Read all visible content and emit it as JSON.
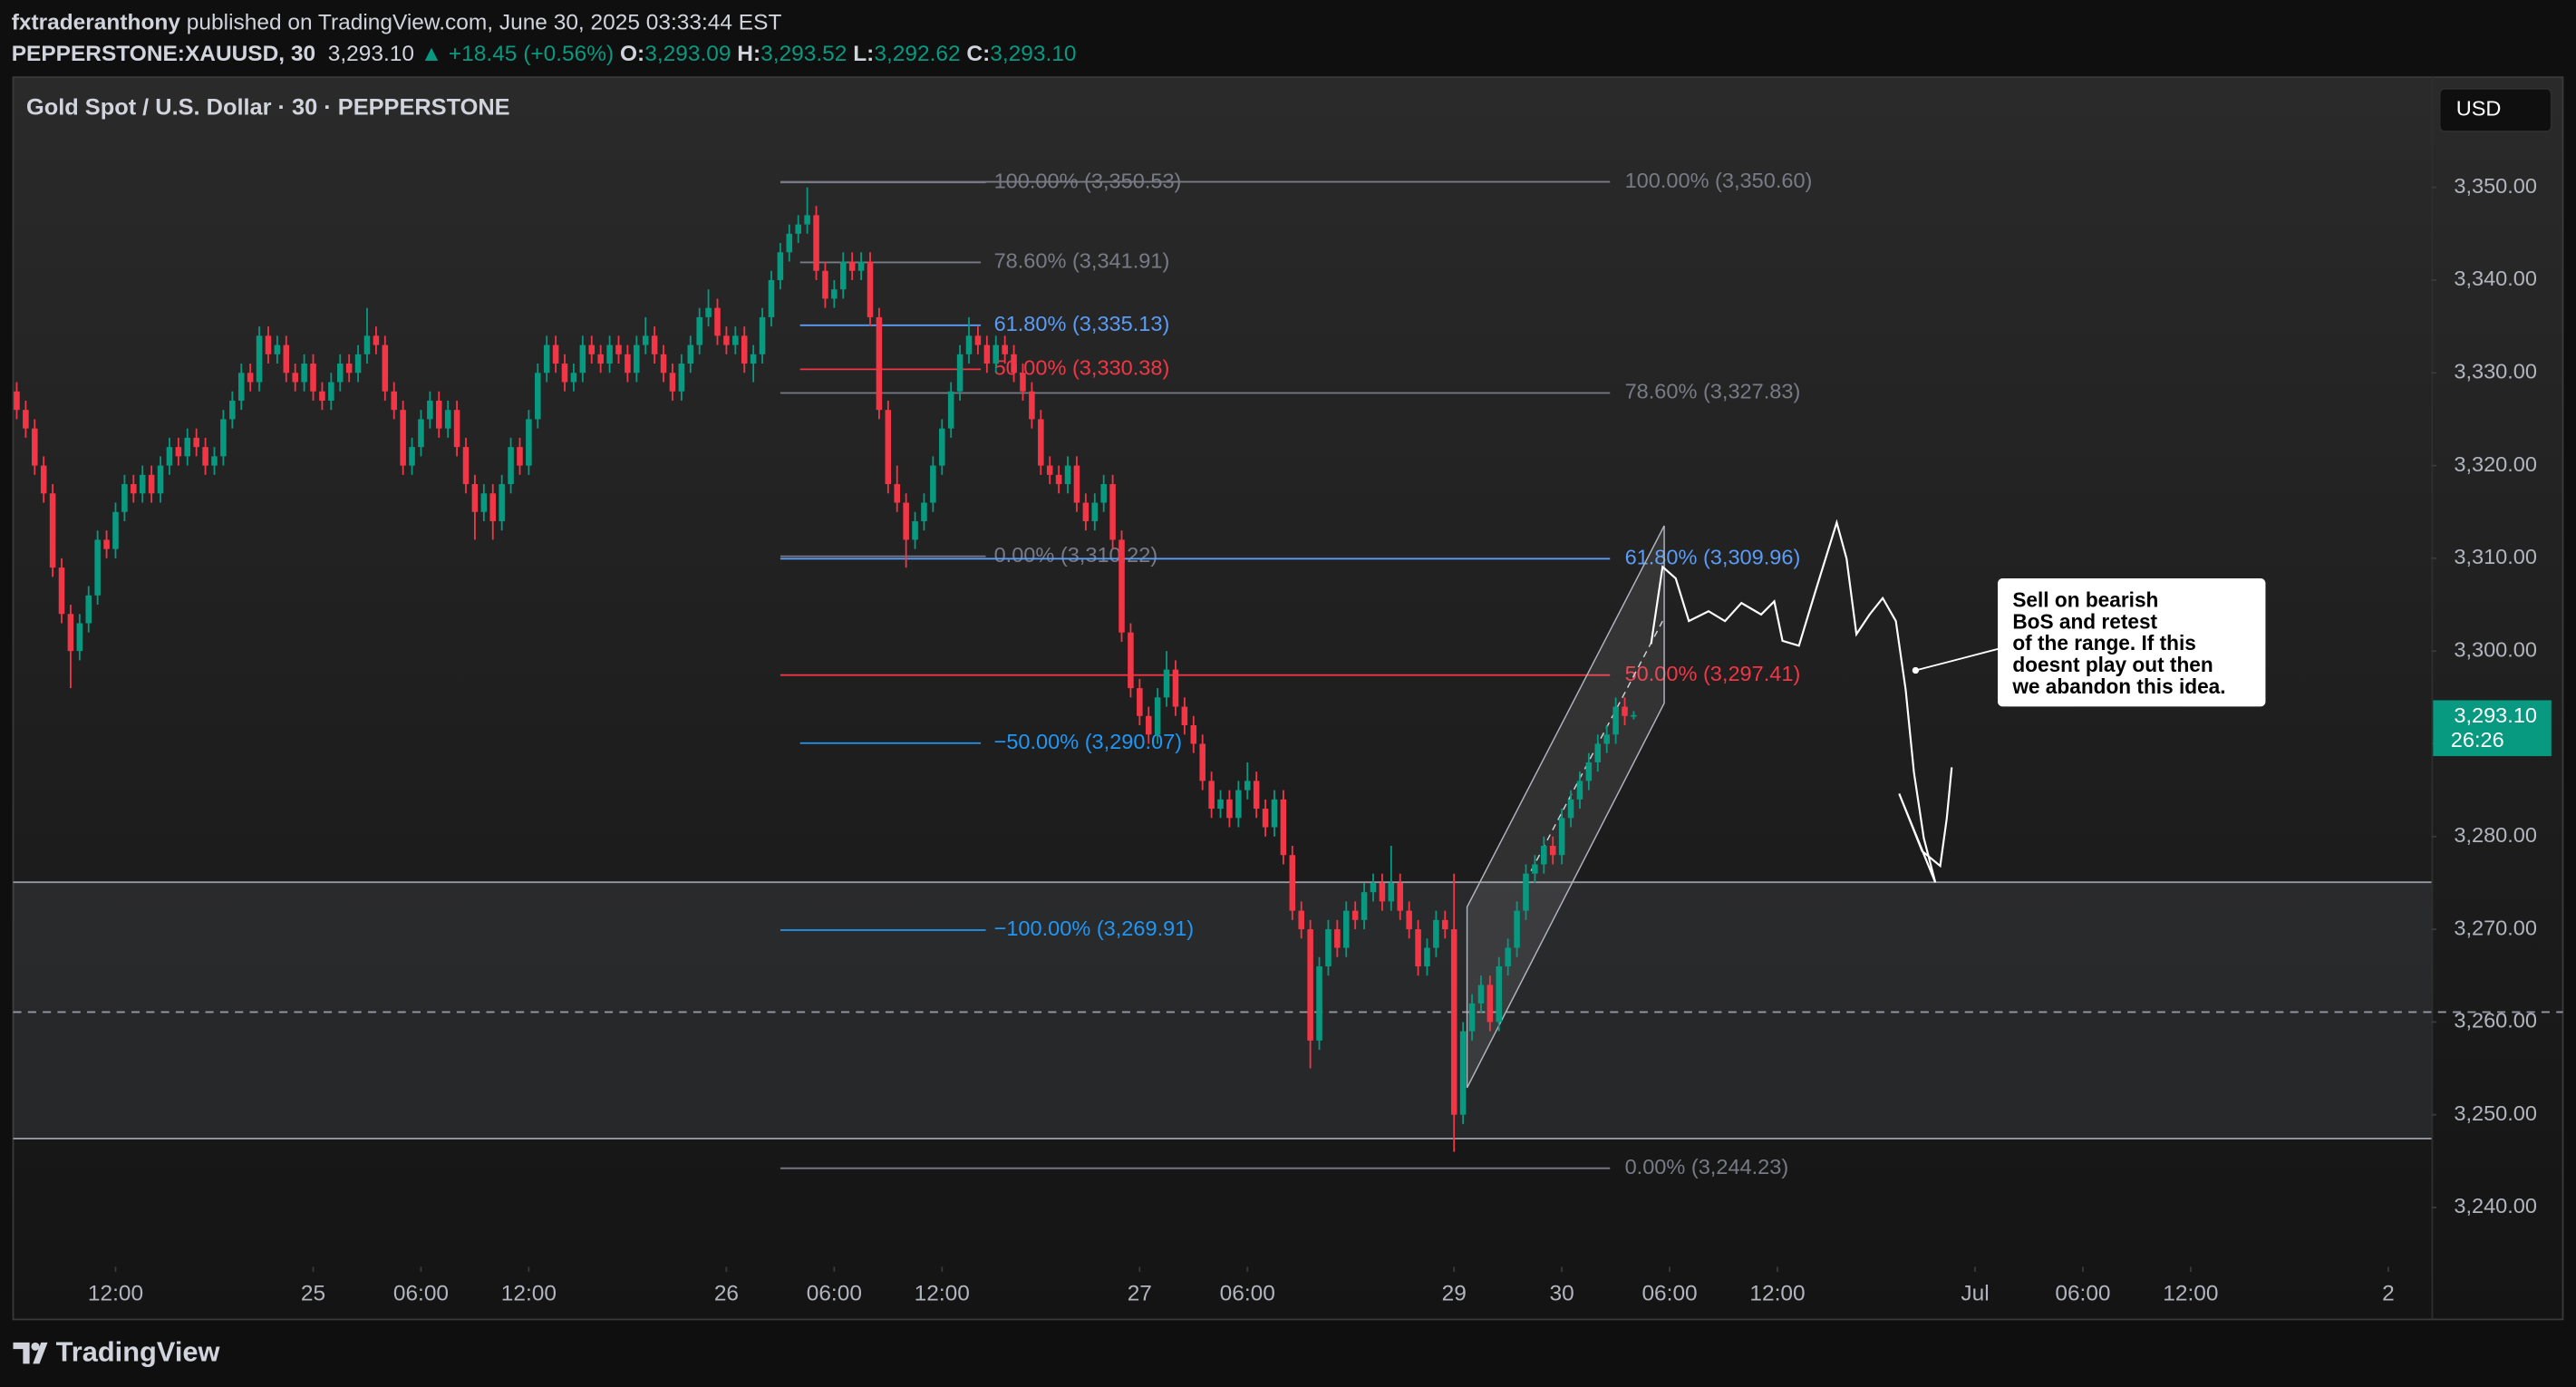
{
  "header": {
    "user": "fxtraderanthony",
    "published": "published on TradingView.com, June 30, 2025 03:33:44 EST",
    "symbol": "PEPPERSTONE:XAUUSD, 30",
    "last": "3,293.10",
    "arrow": "▲",
    "change": "+18.45 (+0.56%)",
    "ohlc": [
      {
        "key": "O:",
        "value": "3,293.09"
      },
      {
        "key": "H:",
        "value": "3,293.52"
      },
      {
        "key": "L:",
        "value": "3,292.62"
      },
      {
        "key": "C:",
        "value": "3,293.10"
      }
    ]
  },
  "chart_data": {
    "type": "candlestick",
    "title": "Gold Spot / U.S. Dollar · 30 · PEPPERSTONE",
    "currency": "USD",
    "up_color": "#089981",
    "down_color": "#f23645",
    "xlim": [
      -0.4,
      268.8
    ],
    "xticks": [
      {
        "value": 11,
        "label": "12:00"
      },
      {
        "value": 33,
        "label": "25"
      },
      {
        "value": 45,
        "label": "06:00"
      },
      {
        "value": 57,
        "label": "12:00"
      },
      {
        "value": 79,
        "label": "26"
      },
      {
        "value": 91,
        "label": "06:00"
      },
      {
        "value": 103,
        "label": "12:00"
      },
      {
        "value": 125,
        "label": "27"
      },
      {
        "value": 137,
        "label": "06:00"
      },
      {
        "value": 160,
        "label": "29"
      },
      {
        "value": 172,
        "label": "30"
      },
      {
        "value": 184,
        "label": "06:00"
      },
      {
        "value": 196,
        "label": "12:00"
      },
      {
        "value": 218,
        "label": "Jul"
      },
      {
        "value": 230,
        "label": "06:00"
      },
      {
        "value": 242,
        "label": "12:00"
      },
      {
        "value": 264,
        "label": "2"
      }
    ],
    "ylim": [
      3233.6,
      3361.7
    ],
    "yticks": [
      {
        "value": 3240,
        "label": "3,240.00"
      },
      {
        "value": 3250,
        "label": "3,250.00"
      },
      {
        "value": 3260,
        "label": "3,260.00"
      },
      {
        "value": 3270,
        "label": "3,270.00"
      },
      {
        "value": 3280,
        "label": "3,280.00"
      },
      {
        "value": 3290,
        "label": "3,290.00"
      },
      {
        "value": 3300,
        "label": "3,300.00"
      },
      {
        "value": 3310,
        "label": "3,310.00"
      },
      {
        "value": 3320,
        "label": "3,320.00"
      },
      {
        "value": 3330,
        "label": "3,330.00"
      },
      {
        "value": 3340,
        "label": "3,340.00"
      },
      {
        "value": 3350,
        "label": "3,350.00"
      }
    ],
    "last_price": {
      "value": 3293.1,
      "label": "3,293.10",
      "countdown": "26:26"
    },
    "zone": {
      "top": 3275.07,
      "bottom": 3247.43,
      "mid": 3261.07
    },
    "fib_retracements": [
      [
        {
          "label": "100.00% (3,350.53)",
          "value": 3350.53,
          "color": "#787b86"
        },
        {
          "label": "78.60% (3,341.91)",
          "value": 3341.91,
          "color": "#787b86"
        },
        {
          "label": "61.80% (3,335.13)",
          "value": 3335.13,
          "color": "#5b9cf6"
        },
        {
          "label": "50.00% (3,330.38)",
          "value": 3330.38,
          "color": "#f23645"
        },
        {
          "label": "0.00% (3,310.22)",
          "value": 3310.22,
          "color": "#787b86"
        },
        {
          "label": "−50.00% (3,290.07)",
          "value": 3290.07,
          "color": "#2196f3"
        },
        {
          "label": "−100.00% (3,269.91)",
          "value": 3269.91,
          "color": "#2196f3"
        }
      ],
      [
        {
          "label": "100.00% (3,350.60)",
          "value": 3350.6,
          "color": "#787b86"
        },
        {
          "label": "78.60% (3,327.83)",
          "value": 3327.83,
          "color": "#787b86"
        },
        {
          "label": "61.80% (3,309.96)",
          "value": 3309.96,
          "color": "#5b9cf6"
        },
        {
          "label": "50.00% (3,297.41)",
          "value": 3297.41,
          "color": "#f23645"
        },
        {
          "label": "0.00% (3,244.23)",
          "value": 3244.23,
          "color": "#787b86"
        }
      ]
    ],
    "note": [
      "Sell on bearish",
      "BoS and retest",
      "of the range. If this",
      "doesnt play out then",
      "we abandon this idea."
    ],
    "candles": [
      [
        3328,
        3329,
        3325,
        3326
      ],
      [
        3326,
        3327,
        3323,
        3324
      ],
      [
        3324,
        3325,
        3319,
        3320
      ],
      [
        3320,
        3321,
        3316,
        3317
      ],
      [
        3317,
        3318,
        3308,
        3309
      ],
      [
        3309,
        3310,
        3303,
        3304
      ],
      [
        3304,
        3305,
        3296,
        3300
      ],
      [
        3300,
        3304,
        3299,
        3303
      ],
      [
        3303,
        3307,
        3302,
        3306
      ],
      [
        3306,
        3313,
        3305,
        3312
      ],
      [
        3312,
        3313,
        3310,
        3311
      ],
      [
        3311,
        3316,
        3310,
        3315
      ],
      [
        3315,
        3319,
        3314,
        3318
      ],
      [
        3318,
        3319,
        3316,
        3317
      ],
      [
        3317,
        3320,
        3316,
        3319
      ],
      [
        3319,
        3320,
        3316,
        3317
      ],
      [
        3317,
        3321,
        3316,
        3320
      ],
      [
        3320,
        3323,
        3319,
        3322
      ],
      [
        3322,
        3323,
        3320,
        3321
      ],
      [
        3321,
        3324,
        3320,
        3323
      ],
      [
        3323,
        3324,
        3321,
        3322
      ],
      [
        3322,
        3323,
        3319,
        3320
      ],
      [
        3320,
        3322,
        3319,
        3321
      ],
      [
        3321,
        3326,
        3320,
        3325
      ],
      [
        3325,
        3328,
        3324,
        3327
      ],
      [
        3327,
        3331,
        3326,
        3330
      ],
      [
        3330,
        3331,
        3328,
        3329
      ],
      [
        3329,
        3335,
        3328,
        3334
      ],
      [
        3334,
        3335,
        3331,
        3332
      ],
      [
        3332,
        3334,
        3331,
        3333
      ],
      [
        3333,
        3334,
        3329,
        3330
      ],
      [
        3330,
        3331,
        3328,
        3329
      ],
      [
        3329,
        3332,
        3328,
        3331
      ],
      [
        3331,
        3332,
        3327,
        3328
      ],
      [
        3328,
        3329,
        3326,
        3327
      ],
      [
        3327,
        3330,
        3326,
        3329
      ],
      [
        3329,
        3332,
        3328,
        3331
      ],
      [
        3331,
        3332,
        3329,
        3330
      ],
      [
        3330,
        3333,
        3329,
        3332
      ],
      [
        3332,
        3337,
        3331,
        3334
      ],
      [
        3334,
        3335,
        3332,
        3333
      ],
      [
        3333,
        3334,
        3327,
        3328
      ],
      [
        3328,
        3329,
        3325,
        3326
      ],
      [
        3326,
        3327,
        3319,
        3320
      ],
      [
        3320,
        3323,
        3319,
        3322
      ],
      [
        3322,
        3326,
        3321,
        3325
      ],
      [
        3325,
        3328,
        3324,
        3327
      ],
      [
        3327,
        3328,
        3323,
        3324
      ],
      [
        3324,
        3327,
        3323,
        3326
      ],
      [
        3326,
        3327,
        3321,
        3322
      ],
      [
        3322,
        3323,
        3317,
        3318
      ],
      [
        3318,
        3319,
        3312,
        3315
      ],
      [
        3315,
        3318,
        3314,
        3317
      ],
      [
        3317,
        3318,
        3312,
        3314
      ],
      [
        3314,
        3319,
        3313,
        3318
      ],
      [
        3318,
        3323,
        3317,
        3322
      ],
      [
        3322,
        3323,
        3319,
        3320
      ],
      [
        3320,
        3326,
        3319,
        3325
      ],
      [
        3325,
        3331,
        3324,
        3330
      ],
      [
        3330,
        3334,
        3329,
        3333
      ],
      [
        3333,
        3334,
        3330,
        3331
      ],
      [
        3331,
        3332,
        3328,
        3329
      ],
      [
        3329,
        3331,
        3328,
        3330
      ],
      [
        3330,
        3334,
        3329,
        3333
      ],
      [
        3333,
        3334,
        3331,
        3332
      ],
      [
        3332,
        3333,
        3330,
        3331
      ],
      [
        3331,
        3334,
        3330,
        3333
      ],
      [
        3333,
        3334,
        3331,
        3332
      ],
      [
        3332,
        3333,
        3329,
        3330
      ],
      [
        3330,
        3334,
        3329,
        3333
      ],
      [
        3333,
        3336,
        3332,
        3334
      ],
      [
        3334,
        3335,
        3331,
        3332
      ],
      [
        3332,
        3333,
        3329,
        3330
      ],
      [
        3330,
        3331,
        3327,
        3328
      ],
      [
        3328,
        3332,
        3327,
        3331
      ],
      [
        3331,
        3334,
        3330,
        3333
      ],
      [
        3333,
        3337,
        3332,
        3336
      ],
      [
        3336,
        3339,
        3335,
        3337
      ],
      [
        3337,
        3338,
        3333,
        3334
      ],
      [
        3334,
        3335,
        3332,
        3333
      ],
      [
        3333,
        3335,
        3332,
        3334
      ],
      [
        3334,
        3335,
        3330,
        3331
      ],
      [
        3331,
        3333,
        3329,
        3332
      ],
      [
        3332,
        3337,
        3331,
        3336
      ],
      [
        3336,
        3341,
        3335,
        3340
      ],
      [
        3340,
        3344,
        3339,
        3343
      ],
      [
        3343,
        3346,
        3342,
        3345
      ],
      [
        3345,
        3347,
        3344,
        3346
      ],
      [
        3346,
        3350,
        3345,
        3347
      ],
      [
        3347,
        3348,
        3340,
        3341
      ],
      [
        3341,
        3342,
        3337,
        3338
      ],
      [
        3338,
        3340,
        3337,
        3339
      ],
      [
        3339,
        3343,
        3338,
        3342
      ],
      [
        3342,
        3343,
        3340,
        3341
      ],
      [
        3341,
        3343,
        3340,
        3342
      ],
      [
        3342,
        3343,
        3335,
        3336
      ],
      [
        3336,
        3337,
        3325,
        3326
      ],
      [
        3326,
        3327,
        3317,
        3318
      ],
      [
        3318,
        3320,
        3315,
        3316
      ],
      [
        3316,
        3317,
        3309,
        3312
      ],
      [
        3312,
        3315,
        3311,
        3314
      ],
      [
        3314,
        3317,
        3313,
        3316
      ],
      [
        3316,
        3321,
        3315,
        3320
      ],
      [
        3320,
        3325,
        3319,
        3324
      ],
      [
        3324,
        3329,
        3323,
        3328
      ],
      [
        3328,
        3333,
        3327,
        3332
      ],
      [
        3332,
        3336,
        3331,
        3334
      ],
      [
        3334,
        3335,
        3332,
        3333
      ],
      [
        3333,
        3334,
        3330,
        3331
      ],
      [
        3331,
        3334,
        3330,
        3333
      ],
      [
        3333,
        3334,
        3331,
        3332
      ],
      [
        3332,
        3333,
        3329,
        3330
      ],
      [
        3330,
        3331,
        3327,
        3328
      ],
      [
        3328,
        3329,
        3324,
        3325
      ],
      [
        3325,
        3326,
        3319,
        3320
      ],
      [
        3320,
        3321,
        3318,
        3319
      ],
      [
        3319,
        3320,
        3317,
        3318
      ],
      [
        3318,
        3321,
        3317,
        3320
      ],
      [
        3320,
        3321,
        3315,
        3316
      ],
      [
        3316,
        3317,
        3313,
        3314
      ],
      [
        3314,
        3317,
        3313,
        3316
      ],
      [
        3316,
        3319,
        3315,
        3318
      ],
      [
        3318,
        3319,
        3311,
        3312
      ],
      [
        3312,
        3313,
        3301,
        3302
      ],
      [
        3302,
        3303,
        3295,
        3296
      ],
      [
        3296,
        3297,
        3292,
        3293
      ],
      [
        3293,
        3294,
        3290,
        3291
      ],
      [
        3291,
        3296,
        3290,
        3295
      ],
      [
        3295,
        3300,
        3294,
        3298
      ],
      [
        3298,
        3299,
        3293,
        3294
      ],
      [
        3294,
        3295,
        3291,
        3292
      ],
      [
        3292,
        3293,
        3289,
        3290
      ],
      [
        3290,
        3291,
        3285,
        3286
      ],
      [
        3286,
        3287,
        3282,
        3283
      ],
      [
        3283,
        3285,
        3282,
        3284
      ],
      [
        3284,
        3285,
        3281,
        3282
      ],
      [
        3282,
        3286,
        3281,
        3285
      ],
      [
        3285,
        3288,
        3284,
        3286
      ],
      [
        3286,
        3287,
        3282,
        3283
      ],
      [
        3283,
        3284,
        3280,
        3281
      ],
      [
        3281,
        3285,
        3280,
        3284
      ],
      [
        3284,
        3285,
        3277,
        3278
      ],
      [
        3278,
        3279,
        3271,
        3272
      ],
      [
        3272,
        3273,
        3269,
        3270
      ],
      [
        3270,
        3271,
        3255,
        3258
      ],
      [
        3258,
        3267,
        3257,
        3266
      ],
      [
        3266,
        3271,
        3265,
        3270
      ],
      [
        3270,
        3271,
        3267,
        3268
      ],
      [
        3268,
        3273,
        3267,
        3272
      ],
      [
        3272,
        3273,
        3270,
        3271
      ],
      [
        3271,
        3275,
        3270,
        3274
      ],
      [
        3274,
        3276,
        3273,
        3275
      ],
      [
        3275,
        3276,
        3272,
        3273
      ],
      [
        3273,
        3279,
        3272,
        3275
      ],
      [
        3275,
        3276,
        3271,
        3272
      ],
      [
        3272,
        3273,
        3269,
        3270
      ],
      [
        3270,
        3271,
        3265,
        3266
      ],
      [
        3266,
        3269,
        3265,
        3268
      ],
      [
        3268,
        3272,
        3267,
        3271
      ],
      [
        3271,
        3272,
        3269,
        3270
      ],
      [
        3270,
        3276,
        3246,
        3250
      ],
      [
        3250,
        3260,
        3249,
        3259
      ],
      [
        3259,
        3263,
        3258,
        3262
      ],
      [
        3262,
        3265,
        3261,
        3264
      ],
      [
        3264,
        3265,
        3259,
        3260
      ],
      [
        3260,
        3267,
        3259,
        3266
      ],
      [
        3266,
        3269,
        3265,
        3268
      ],
      [
        3268,
        3273,
        3267,
        3272
      ],
      [
        3272,
        3277,
        3271,
        3276
      ],
      [
        3276,
        3278,
        3275,
        3277
      ],
      [
        3277,
        3280,
        3276,
        3279
      ],
      [
        3279,
        3280,
        3277,
        3278
      ],
      [
        3278,
        3283,
        3277,
        3282
      ],
      [
        3282,
        3285,
        3281,
        3284
      ],
      [
        3284,
        3287,
        3283,
        3286
      ],
      [
        3286,
        3289,
        3285,
        3288
      ],
      [
        3288,
        3291,
        3287,
        3290
      ],
      [
        3290,
        3292,
        3289,
        3291
      ],
      [
        3291,
        3295,
        3290,
        3294
      ],
      [
        3294,
        3295,
        3292,
        3293
      ],
      [
        3293.09,
        3293.52,
        3292.62,
        3293.1
      ]
    ]
  },
  "footer": {
    "brand": "TradingView"
  }
}
